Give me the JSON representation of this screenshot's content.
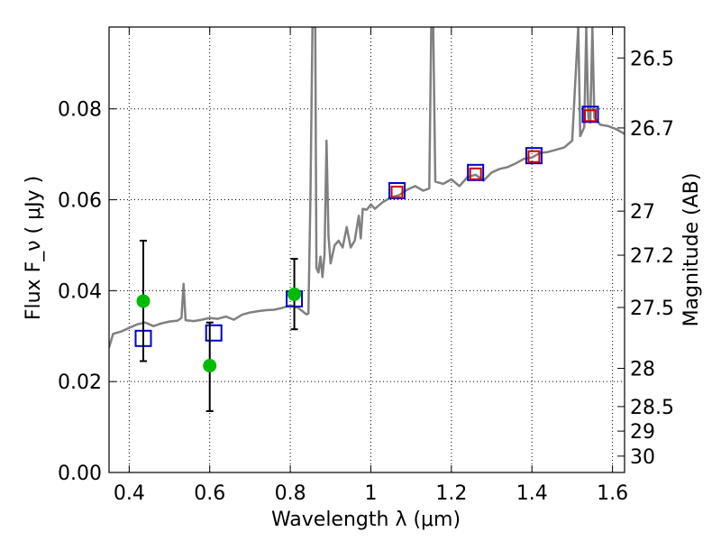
{
  "chart_data": {
    "type": "scatter",
    "xlabel": "Wavelength  λ (μm)",
    "ylabel": "Flux  F_ν  ( μJy )",
    "y2label": "Magnitude (AB)",
    "xlim": [
      0.35,
      1.63
    ],
    "ylim": [
      0.0,
      0.098
    ],
    "grid": true,
    "x_ticks": [
      0.4,
      0.6,
      0.8,
      1.0,
      1.2,
      1.4,
      1.6
    ],
    "x_tick_labels": [
      "0.4",
      "0.6",
      "0.8",
      "1",
      "1.2",
      "1.4",
      "1.6"
    ],
    "y_ticks": [
      0.0,
      0.02,
      0.04,
      0.06,
      0.08
    ],
    "y_tick_labels": [
      "0.00",
      "0.02",
      "0.04",
      "0.06",
      "0.08"
    ],
    "y2_ticks": [
      {
        "label": "26.5",
        "flux": 0.0912
      },
      {
        "label": "26.7",
        "flux": 0.0758
      },
      {
        "label": "27",
        "flux": 0.0575
      },
      {
        "label": "27.2",
        "flux": 0.0478
      },
      {
        "label": "27.5",
        "flux": 0.0363
      },
      {
        "label": "28",
        "flux": 0.0229
      },
      {
        "label": "28.5",
        "flux": 0.0145
      },
      {
        "label": "29",
        "flux": 0.0091
      },
      {
        "label": "30",
        "flux": 0.0036
      }
    ],
    "series": [
      {
        "name": "model spectrum",
        "kind": "line",
        "color": "#808080",
        "points": [
          [
            0.35,
            0.0275
          ],
          [
            0.36,
            0.0305
          ],
          [
            0.38,
            0.031
          ],
          [
            0.4,
            0.0318
          ],
          [
            0.42,
            0.0326
          ],
          [
            0.44,
            0.033
          ],
          [
            0.46,
            0.0322
          ],
          [
            0.48,
            0.0328
          ],
          [
            0.5,
            0.0332
          ],
          [
            0.52,
            0.0334
          ],
          [
            0.53,
            0.034
          ],
          [
            0.535,
            0.0415
          ],
          [
            0.54,
            0.0335
          ],
          [
            0.56,
            0.0333
          ],
          [
            0.58,
            0.0336
          ],
          [
            0.6,
            0.034
          ],
          [
            0.62,
            0.0338
          ],
          [
            0.64,
            0.0343
          ],
          [
            0.66,
            0.0336
          ],
          [
            0.68,
            0.0347
          ],
          [
            0.7,
            0.0352
          ],
          [
            0.72,
            0.0355
          ],
          [
            0.74,
            0.0357
          ],
          [
            0.76,
            0.0358
          ],
          [
            0.78,
            0.0362
          ],
          [
            0.8,
            0.0368
          ],
          [
            0.82,
            0.0362
          ],
          [
            0.84,
            0.0348
          ],
          [
            0.845,
            0.035
          ],
          [
            0.85,
            0.06
          ],
          [
            0.855,
            0.098
          ],
          [
            0.862,
            0.098
          ],
          [
            0.865,
            0.045
          ],
          [
            0.87,
            0.044
          ],
          [
            0.875,
            0.0475
          ],
          [
            0.88,
            0.043
          ],
          [
            0.885,
            0.048
          ],
          [
            0.89,
            0.073
          ],
          [
            0.895,
            0.052
          ],
          [
            0.9,
            0.046
          ],
          [
            0.91,
            0.05
          ],
          [
            0.92,
            0.051
          ],
          [
            0.93,
            0.0495
          ],
          [
            0.94,
            0.054
          ],
          [
            0.95,
            0.0495
          ],
          [
            0.96,
            0.051
          ],
          [
            0.97,
            0.0565
          ],
          [
            0.975,
            0.0515
          ],
          [
            0.98,
            0.058
          ],
          [
            0.99,
            0.0578
          ],
          [
            1.0,
            0.059
          ],
          [
            1.01,
            0.058
          ],
          [
            1.03,
            0.0595
          ],
          [
            1.05,
            0.0605
          ],
          [
            1.07,
            0.061
          ],
          [
            1.09,
            0.0622
          ],
          [
            1.11,
            0.063
          ],
          [
            1.13,
            0.062
          ],
          [
            1.145,
            0.0625
          ],
          [
            1.15,
            0.098
          ],
          [
            1.155,
            0.098
          ],
          [
            1.16,
            0.064
          ],
          [
            1.18,
            0.0635
          ],
          [
            1.2,
            0.0645
          ],
          [
            1.22,
            0.063
          ],
          [
            1.24,
            0.065
          ],
          [
            1.26,
            0.0655
          ],
          [
            1.28,
            0.0642
          ],
          [
            1.3,
            0.066
          ],
          [
            1.32,
            0.0668
          ],
          [
            1.34,
            0.0672
          ],
          [
            1.36,
            0.068
          ],
          [
            1.38,
            0.069
          ],
          [
            1.4,
            0.0693
          ],
          [
            1.42,
            0.0703
          ],
          [
            1.44,
            0.0705
          ],
          [
            1.46,
            0.071
          ],
          [
            1.48,
            0.0715
          ],
          [
            1.5,
            0.073
          ],
          [
            1.51,
            0.09
          ],
          [
            1.515,
            0.098
          ],
          [
            1.52,
            0.074
          ],
          [
            1.53,
            0.076
          ],
          [
            1.535,
            0.098
          ],
          [
            1.54,
            0.078
          ],
          [
            1.545,
            0.077
          ],
          [
            1.55,
            0.098
          ],
          [
            1.555,
            0.078
          ],
          [
            1.57,
            0.0765
          ],
          [
            1.59,
            0.0762
          ],
          [
            1.61,
            0.0755
          ],
          [
            1.63,
            0.0745
          ]
        ]
      },
      {
        "name": "model photometry",
        "kind": "open-square",
        "color": "#0000cc",
        "points": [
          [
            0.435,
            0.0295
          ],
          [
            0.61,
            0.0307
          ],
          [
            0.81,
            0.0382
          ],
          [
            1.065,
            0.062
          ],
          [
            1.26,
            0.066
          ],
          [
            1.405,
            0.0697
          ],
          [
            1.545,
            0.0788
          ]
        ]
      },
      {
        "name": "observed photometry (red squares)",
        "kind": "open-square-small",
        "color": "#cc0000",
        "points": [
          [
            1.065,
            0.0617
          ],
          [
            1.26,
            0.0657
          ],
          [
            1.405,
            0.0695
          ],
          [
            1.545,
            0.0785
          ]
        ]
      },
      {
        "name": "observed photometry (green)",
        "kind": "filled-circle",
        "color": "#00bb00",
        "points": [
          [
            0.435,
            0.0377
          ],
          [
            0.6,
            0.0235
          ],
          [
            0.81,
            0.0392
          ]
        ],
        "errors": [
          [
            0.0245,
            0.051
          ],
          [
            0.0135,
            0.033
          ],
          [
            0.0315,
            0.047
          ]
        ]
      }
    ]
  }
}
